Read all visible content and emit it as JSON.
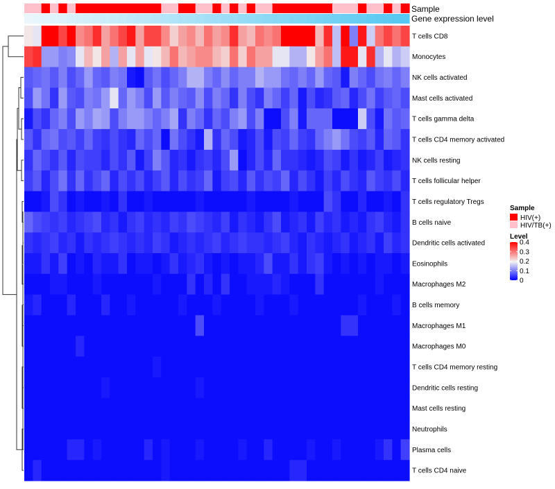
{
  "chart_data": {
    "type": "heatmap",
    "annotation_labels": {
      "sample": "Sample",
      "expression": "Gene expression level"
    },
    "row_labels": [
      "T cells CD8",
      "Monocytes",
      "NK cells activated",
      "Mast cells activated",
      "T cells gamma delta",
      "T cells CD4 memory activated",
      "NK cells resting",
      "T cells follicular helper",
      "T cells regulatory  Tregs",
      "B cells naive",
      "Dendritic cells activated",
      "Eosinophils",
      "Macrophages M2",
      "B cells memory",
      "Macrophages M1",
      "Macrophages M0",
      "T cells CD4 memory resting",
      "Dendritic cells resting",
      "Mast cells resting",
      "Neutrophils",
      "Plasma cells",
      "T cells CD4 naive"
    ],
    "n_columns": 45,
    "sample_groups": [
      "HIV/TB(+)",
      "HIV/TB(+)",
      "HIV(+)",
      "HIV/TB(+)",
      "HIV(+)",
      "HIV/TB(+)",
      "HIV(+)",
      "HIV(+)",
      "HIV(+)",
      "HIV(+)",
      "HIV(+)",
      "HIV(+)",
      "HIV(+)",
      "HIV(+)",
      "HIV(+)",
      "HIV(+)",
      "HIV/TB(+)",
      "HIV/TB(+)",
      "HIV(+)",
      "HIV(+)",
      "HIV/TB(+)",
      "HIV/TB(+)",
      "HIV(+)",
      "HIV/TB(+)",
      "HIV(+)",
      "HIV/TB(+)",
      "HIV(+)",
      "HIV/TB(+)",
      "HIV/TB(+)",
      "HIV(+)",
      "HIV(+)",
      "HIV(+)",
      "HIV(+)",
      "HIV(+)",
      "HIV(+)",
      "HIV(+)",
      "HIV/TB(+)",
      "HIV/TB(+)",
      "HIV/TB(+)",
      "HIV(+)",
      "HIV/TB(+)",
      "HIV/TB(+)",
      "HIV(+)",
      "HIV/TB(+)",
      "HIV(+)"
    ],
    "sample_colors": {
      "HIV(+)": "#ff0000",
      "HIV/TB(+)": "#ffc0cb"
    },
    "expression_gradient": [
      "#eaf6fc",
      "#56c8f1"
    ],
    "values": [
      [
        0.2,
        0.18,
        0.4,
        0.4,
        0.34,
        0.4,
        0.28,
        0.3,
        0.36,
        0.26,
        0.3,
        0.34,
        0.38,
        0.26,
        0.34,
        0.34,
        0.28,
        0.22,
        0.26,
        0.28,
        0.24,
        0.3,
        0.26,
        0.28,
        0.36,
        0.26,
        0.24,
        0.3,
        0.28,
        0.3,
        0.4,
        0.4,
        0.4,
        0.4,
        0.24,
        0.36,
        0.15,
        0.4,
        0.1,
        0.38,
        0.16,
        0.3,
        0.34,
        0.3,
        0.34
      ],
      [
        0.34,
        0.36,
        0.12,
        0.12,
        0.1,
        0.11,
        0.18,
        0.24,
        0.2,
        0.26,
        0.14,
        0.26,
        0.18,
        0.26,
        0.18,
        0.2,
        0.24,
        0.3,
        0.24,
        0.26,
        0.28,
        0.28,
        0.24,
        0.22,
        0.3,
        0.22,
        0.3,
        0.26,
        0.26,
        0.18,
        0.18,
        0.14,
        0.14,
        0.2,
        0.26,
        0.3,
        0.15,
        0.38,
        0.38,
        0.18,
        0.36,
        0.14,
        0.18,
        0.14,
        0.16
      ],
      [
        0.07,
        0.08,
        0.09,
        0.07,
        0.1,
        0.06,
        0.08,
        0.12,
        0.08,
        0.07,
        0.1,
        0.09,
        0.02,
        0.01,
        0.07,
        0.09,
        0.06,
        0.08,
        0.1,
        0.14,
        0.14,
        0.1,
        0.08,
        0.11,
        0.08,
        0.1,
        0.1,
        0.14,
        0.12,
        0.12,
        0.09,
        0.08,
        0.1,
        0.08,
        0.12,
        0.08,
        0.07,
        0.02,
        0.1,
        0.08,
        0.06,
        0.09,
        0.1,
        0.08,
        0.1
      ],
      [
        0.06,
        0.12,
        0.09,
        0.04,
        0.12,
        0.07,
        0.06,
        0.1,
        0.09,
        0.12,
        0.18,
        0.08,
        0.12,
        0.1,
        0.06,
        0.12,
        0.07,
        0.1,
        0.08,
        0.07,
        0.11,
        0.06,
        0.1,
        0.08,
        0.04,
        0.1,
        0.06,
        0.04,
        0.1,
        0.08,
        0.05,
        0.08,
        0.02,
        0.06,
        0.03,
        0.04,
        0.07,
        0.08,
        0.03,
        0.06,
        0.09,
        0.05,
        0.07,
        0.08,
        0.06
      ],
      [
        0.02,
        0.06,
        0.04,
        0.08,
        0.1,
        0.06,
        0.12,
        0.1,
        0.13,
        0.12,
        0.06,
        0.1,
        0.12,
        0.12,
        0.1,
        0.08,
        0.1,
        0.13,
        0.04,
        0.1,
        0.08,
        0.04,
        0.08,
        0.06,
        0.1,
        0.12,
        0.06,
        0.1,
        0.01,
        0.01,
        0.06,
        0.1,
        0.02,
        0.08,
        0.08,
        0.08,
        0.01,
        0.01,
        0.01,
        0.16,
        0.06,
        0.02,
        0.09,
        0.07,
        0.08
      ],
      [
        0.07,
        0.04,
        0.08,
        0.09,
        0.06,
        0.07,
        0.05,
        0.08,
        0.05,
        0.04,
        0.06,
        0.04,
        0.03,
        0.08,
        0.06,
        0.08,
        0.01,
        0.09,
        0.06,
        0.04,
        0.02,
        0.14,
        0.04,
        0.08,
        0.06,
        0.02,
        0.03,
        0.06,
        0.02,
        0.06,
        0.05,
        0.08,
        0.05,
        0.04,
        0.08,
        0.1,
        0.12,
        0.09,
        0.06,
        0.05,
        0.07,
        0.03,
        0.08,
        0.07,
        0.04
      ],
      [
        0.04,
        0.08,
        0.06,
        0.04,
        0.07,
        0.03,
        0.06,
        0.05,
        0.05,
        0.03,
        0.06,
        0.04,
        0.07,
        0.02,
        0.05,
        0.1,
        0.07,
        0.03,
        0.04,
        0.02,
        0.04,
        0.05,
        0.03,
        0.06,
        0.12,
        0.01,
        0.03,
        0.06,
        0.03,
        0.08,
        0.04,
        0.04,
        0.03,
        0.02,
        0.03,
        0.06,
        0.05,
        0.02,
        0.04,
        0.02,
        0.03,
        0.05,
        0.02,
        0.03,
        0.04
      ],
      [
        0.05,
        0.07,
        0.03,
        0.06,
        0.09,
        0.04,
        0.08,
        0.04,
        0.06,
        0.08,
        0.03,
        0.06,
        0.04,
        0.06,
        0.03,
        0.05,
        0.07,
        0.03,
        0.06,
        0.04,
        0.05,
        0.08,
        0.02,
        0.05,
        0.06,
        0.03,
        0.07,
        0.04,
        0.06,
        0.05,
        0.08,
        0.03,
        0.06,
        0.04,
        0.02,
        0.05,
        0.03,
        0.06,
        0.04,
        0.03,
        0.07,
        0.05,
        0.04,
        0.06,
        0.03
      ],
      [
        0.01,
        0.01,
        0.02,
        0.06,
        0.04,
        0.01,
        0.02,
        0.01,
        0.01,
        0.02,
        0.01,
        0.04,
        0.01,
        0.01,
        0.02,
        0.01,
        0.01,
        0.01,
        0.01,
        0.01,
        0.02,
        0.01,
        0.01,
        0.01,
        0.01,
        0.01,
        0.02,
        0.01,
        0.01,
        0.01,
        0.01,
        0.02,
        0.01,
        0.01,
        0.01,
        0.06,
        0.04,
        0.01,
        0.01,
        0.03,
        0.01,
        0.01,
        0.02,
        0.01,
        0.04
      ],
      [
        0.08,
        0.06,
        0.05,
        0.04,
        0.05,
        0.03,
        0.04,
        0.05,
        0.06,
        0.03,
        0.04,
        0.02,
        0.04,
        0.05,
        0.03,
        0.04,
        0.03,
        0.05,
        0.04,
        0.06,
        0.05,
        0.04,
        0.03,
        0.05,
        0.02,
        0.04,
        0.03,
        0.02,
        0.04,
        0.06,
        0.02,
        0.03,
        0.04,
        0.02,
        0.05,
        0.03,
        0.04,
        0.02,
        0.03,
        0.02,
        0.04,
        0.05,
        0.03,
        0.02,
        0.04
      ],
      [
        0.04,
        0.03,
        0.04,
        0.05,
        0.03,
        0.04,
        0.02,
        0.04,
        0.03,
        0.04,
        0.05,
        0.04,
        0.03,
        0.04,
        0.03,
        0.05,
        0.04,
        0.02,
        0.03,
        0.04,
        0.03,
        0.04,
        0.05,
        0.03,
        0.04,
        0.05,
        0.04,
        0.04,
        0.03,
        0.04,
        0.05,
        0.03,
        0.02,
        0.04,
        0.03,
        0.02,
        0.03,
        0.04,
        0.02,
        0.03,
        0.04,
        0.02,
        0.05,
        0.03,
        0.04
      ],
      [
        0.02,
        0.02,
        0.04,
        0.02,
        0.05,
        0.01,
        0.02,
        0.01,
        0.03,
        0.02,
        0.02,
        0.04,
        0.01,
        0.02,
        0.02,
        0.01,
        0.02,
        0.04,
        0.02,
        0.03,
        0.04,
        0.02,
        0.01,
        0.02,
        0.01,
        0.02,
        0.02,
        0.03,
        0.06,
        0.02,
        0.02,
        0.04,
        0.02,
        0.04,
        0.05,
        0.02,
        0.01,
        0.02,
        0.01,
        0.02,
        0.01,
        0.02,
        0.02,
        0.01,
        0.02
      ],
      [
        0.01,
        0.01,
        0.01,
        0.02,
        0.02,
        0.01,
        0.01,
        0.01,
        0.02,
        0.01,
        0.01,
        0.01,
        0.01,
        0.01,
        0.01,
        0.02,
        0.01,
        0.01,
        0.01,
        0.04,
        0.01,
        0.03,
        0.01,
        0.04,
        0.01,
        0.01,
        0.02,
        0.02,
        0.02,
        0.03,
        0.02,
        0.01,
        0.01,
        0.01,
        0.04,
        0.01,
        0.01,
        0.01,
        0.01,
        0.01,
        0.01,
        0.02,
        0.01,
        0.01,
        0.01
      ],
      [
        0.02,
        0.03,
        0.01,
        0.01,
        0.01,
        0.03,
        0.01,
        0.01,
        0.01,
        0.03,
        0.01,
        0.01,
        0.02,
        0.01,
        0.01,
        0.01,
        0.01,
        0.01,
        0.02,
        0.01,
        0.01,
        0.01,
        0.02,
        0.01,
        0.01,
        0.01,
        0.01,
        0.02,
        0.01,
        0.01,
        0.01,
        0.02,
        0.01,
        0.01,
        0.01,
        0.01,
        0.01,
        0.01,
        0.01,
        0.02,
        0.01,
        0.01,
        0.01,
        0.02,
        0.01
      ],
      [
        0.01,
        0.01,
        0.01,
        0.01,
        0.01,
        0.01,
        0.01,
        0.01,
        0.01,
        0.01,
        0.01,
        0.01,
        0.01,
        0.01,
        0.01,
        0.01,
        0.01,
        0.01,
        0.01,
        0.01,
        0.06,
        0.01,
        0.01,
        0.01,
        0.01,
        0.01,
        0.01,
        0.01,
        0.01,
        0.01,
        0.01,
        0.01,
        0.01,
        0.01,
        0.01,
        0.01,
        0.01,
        0.04,
        0.04,
        0.01,
        0.01,
        0.01,
        0.01,
        0.01,
        0.01
      ],
      [
        0.01,
        0.01,
        0.01,
        0.01,
        0.01,
        0.01,
        0.03,
        0.01,
        0.01,
        0.01,
        0.01,
        0.01,
        0.01,
        0.01,
        0.01,
        0.01,
        0.01,
        0.01,
        0.01,
        0.01,
        0.01,
        0.01,
        0.01,
        0.01,
        0.01,
        0.01,
        0.01,
        0.01,
        0.01,
        0.01,
        0.01,
        0.01,
        0.01,
        0.01,
        0.01,
        0.01,
        0.01,
        0.01,
        0.01,
        0.01,
        0.01,
        0.01,
        0.01,
        0.01,
        0.01
      ],
      [
        0.01,
        0.01,
        0.01,
        0.01,
        0.01,
        0.01,
        0.01,
        0.01,
        0.01,
        0.01,
        0.01,
        0.01,
        0.01,
        0.01,
        0.01,
        0.02,
        0.01,
        0.01,
        0.01,
        0.01,
        0.01,
        0.01,
        0.01,
        0.01,
        0.01,
        0.01,
        0.01,
        0.01,
        0.01,
        0.01,
        0.01,
        0.01,
        0.01,
        0.01,
        0.01,
        0.01,
        0.01,
        0.01,
        0.01,
        0.01,
        0.01,
        0.01,
        0.01,
        0.01,
        0.01
      ],
      [
        0.01,
        0.01,
        0.01,
        0.01,
        0.01,
        0.01,
        0.01,
        0.01,
        0.01,
        0.02,
        0.01,
        0.01,
        0.01,
        0.01,
        0.01,
        0.01,
        0.01,
        0.01,
        0.01,
        0.01,
        0.02,
        0.01,
        0.01,
        0.01,
        0.01,
        0.01,
        0.01,
        0.01,
        0.01,
        0.01,
        0.01,
        0.01,
        0.01,
        0.01,
        0.01,
        0.01,
        0.01,
        0.01,
        0.01,
        0.01,
        0.01,
        0.01,
        0.01,
        0.01,
        0.01
      ],
      [
        0.01,
        0.01,
        0.01,
        0.01,
        0.01,
        0.01,
        0.01,
        0.01,
        0.01,
        0.01,
        0.01,
        0.01,
        0.01,
        0.01,
        0.01,
        0.01,
        0.01,
        0.01,
        0.01,
        0.01,
        0.01,
        0.01,
        0.01,
        0.01,
        0.01,
        0.01,
        0.01,
        0.01,
        0.01,
        0.01,
        0.01,
        0.01,
        0.01,
        0.01,
        0.01,
        0.01,
        0.01,
        0.01,
        0.01,
        0.01,
        0.01,
        0.01,
        0.01,
        0.01,
        0.01
      ],
      [
        0.01,
        0.01,
        0.01,
        0.01,
        0.01,
        0.01,
        0.01,
        0.01,
        0.01,
        0.01,
        0.01,
        0.01,
        0.01,
        0.01,
        0.01,
        0.01,
        0.01,
        0.01,
        0.01,
        0.01,
        0.01,
        0.01,
        0.01,
        0.01,
        0.01,
        0.01,
        0.01,
        0.01,
        0.01,
        0.01,
        0.01,
        0.01,
        0.01,
        0.01,
        0.01,
        0.01,
        0.01,
        0.01,
        0.01,
        0.01,
        0.01,
        0.01,
        0.01,
        0.01,
        0.01
      ],
      [
        0.01,
        0.01,
        0.01,
        0.01,
        0.01,
        0.03,
        0.03,
        0.01,
        0.02,
        0.01,
        0.01,
        0.01,
        0.01,
        0.01,
        0.03,
        0.01,
        0.02,
        0.01,
        0.01,
        0.01,
        0.02,
        0.01,
        0.01,
        0.01,
        0.01,
        0.02,
        0.01,
        0.01,
        0.03,
        0.01,
        0.01,
        0.01,
        0.01,
        0.02,
        0.01,
        0.01,
        0.02,
        0.01,
        0.01,
        0.01,
        0.01,
        0.02,
        0.04,
        0.01,
        0.05
      ],
      [
        0.01,
        0.03,
        0.01,
        0.01,
        0.01,
        0.01,
        0.01,
        0.01,
        0.01,
        0.01,
        0.01,
        0.01,
        0.01,
        0.01,
        0.01,
        0.01,
        0.02,
        0.01,
        0.01,
        0.01,
        0.01,
        0.01,
        0.01,
        0.01,
        0.01,
        0.01,
        0.01,
        0.01,
        0.01,
        0.01,
        0.01,
        0.03,
        0.03,
        0.01,
        0.01,
        0.01,
        0.01,
        0.01,
        0.01,
        0.01,
        0.01,
        0.01,
        0.01,
        0.01,
        0.01
      ]
    ],
    "color_scale": {
      "stops": [
        {
          "value": 0,
          "color": "#0000ff"
        },
        {
          "value": 0.19,
          "color": "#f2f2f2"
        },
        {
          "value": 0.4,
          "color": "#ff0000"
        }
      ]
    },
    "legend_sample": {
      "title": "Sample",
      "entries": [
        "HIV(+)",
        "HIV/TB(+)"
      ]
    },
    "legend_level": {
      "title": "Level",
      "ticks": [
        "0.4",
        "0.3",
        "0.2",
        "0.1",
        "0"
      ],
      "tick_values": [
        0.4,
        0.3,
        0.2,
        0.1,
        0
      ]
    }
  }
}
